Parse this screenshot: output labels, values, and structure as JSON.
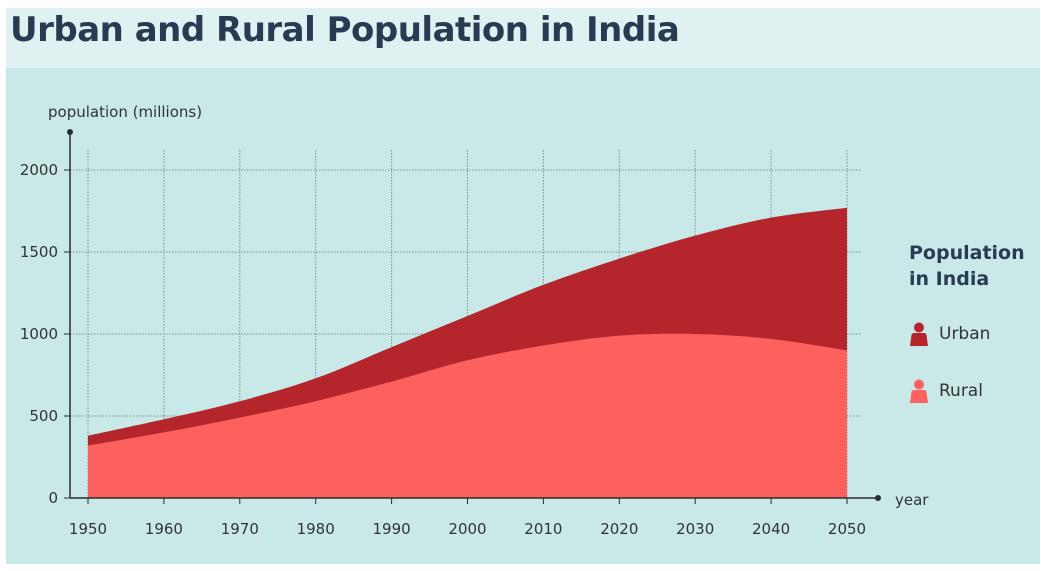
{
  "title": "Urban and Rural Population in India",
  "legend": {
    "title_line1": "Population",
    "title_line2": "in India",
    "items": [
      {
        "label": "Urban",
        "color": "#b4262b",
        "icon": "person-icon"
      },
      {
        "label": "Rural",
        "color": "#fc615d",
        "icon": "person-icon"
      }
    ]
  },
  "chart_data": {
    "type": "area",
    "stacked": true,
    "title": "Urban and Rural Population in India",
    "xlabel": "year",
    "ylabel": "population (millions)",
    "x": [
      1950,
      1960,
      1970,
      1980,
      1990,
      2000,
      2010,
      2020,
      2030,
      2040,
      2050
    ],
    "xticks": [
      "1950",
      "1960",
      "1970",
      "1980",
      "1990",
      "2000",
      "2010",
      "2020",
      "2030",
      "2040",
      "2050"
    ],
    "yticks": [
      "0",
      "500",
      "1000",
      "1500",
      "2000"
    ],
    "ylim": [
      0,
      2000
    ],
    "xlim": [
      1950,
      2050
    ],
    "grid": true,
    "legend_position": "right",
    "series": [
      {
        "name": "Rural",
        "color": "#fc615d",
        "values": [
          320,
          400,
          490,
          590,
          710,
          840,
          930,
          990,
          1000,
          970,
          900
        ]
      },
      {
        "name": "Urban",
        "color": "#b4262b",
        "values": [
          60,
          80,
          100,
          140,
          210,
          270,
          370,
          470,
          600,
          740,
          870
        ]
      }
    ]
  }
}
